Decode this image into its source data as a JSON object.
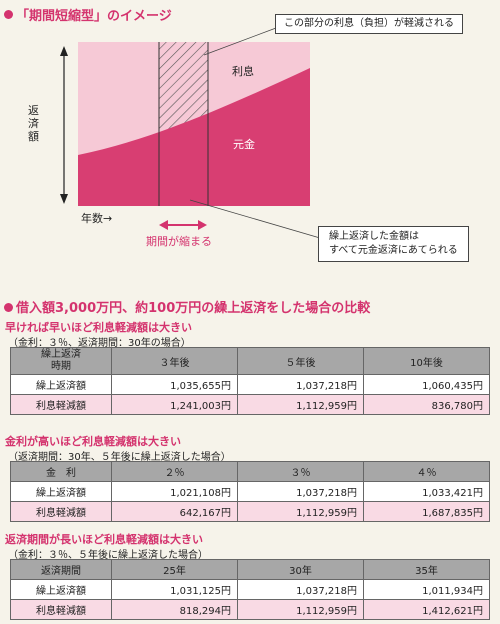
{
  "diagram": {
    "title": "「期間短縮型」のイメージ",
    "callout_top": "この部分の利息（負担）が軽減される",
    "label_interest": "利息",
    "label_principal": "元金",
    "y_axis_label": "返済額",
    "x_axis_label": "年数→",
    "period_label": "期間が縮まる",
    "callout_bottom_line1": "繰上返済した金額は",
    "callout_bottom_line2": "すべて元金返済にあてられる"
  },
  "comparison": {
    "title": "借入額3,000万円、約100万円の繰上返済をした場合の比較",
    "sections": [
      {
        "heading": "早ければ早いほど利息軽減額は大きい",
        "condition": "（金利：３％、返済期間：30年の場合）",
        "header_label_line1": "繰上返済",
        "header_label_line2": "時期",
        "columns": [
          "３年後",
          "５年後",
          "10年後"
        ],
        "rows": [
          {
            "label": "繰上返済額",
            "values": [
              "1,035,655円",
              "1,037,218円",
              "1,060,435円"
            ]
          },
          {
            "label": "利息軽減額",
            "values": [
              "1,241,003円",
              "1,112,959円",
              "836,780円"
            ]
          }
        ]
      },
      {
        "heading": "金利が高いほど利息軽減額は大きい",
        "condition": "（返済期間：30年、５年後に繰上返済した場合）",
        "header_label": "金　利",
        "columns": [
          "２％",
          "３％",
          "４％"
        ],
        "rows": [
          {
            "label": "繰上返済額",
            "values": [
              "1,021,108円",
              "1,037,218円",
              "1,033,421円"
            ]
          },
          {
            "label": "利息軽減額",
            "values": [
              "642,167円",
              "1,112,959円",
              "1,687,835円"
            ]
          }
        ]
      },
      {
        "heading": "返済期間が長いほど利息軽減額は大きい",
        "condition": "（金利：３％、５年後に繰上返済した場合）",
        "header_label": "返済期間",
        "columns": [
          "25年",
          "30年",
          "35年"
        ],
        "rows": [
          {
            "label": "繰上返済額",
            "values": [
              "1,031,125円",
              "1,037,218円",
              "1,011,934円"
            ]
          },
          {
            "label": "利息軽減額",
            "values": [
              "818,294円",
              "1,112,959円",
              "1,412,621円"
            ]
          }
        ]
      }
    ]
  }
}
